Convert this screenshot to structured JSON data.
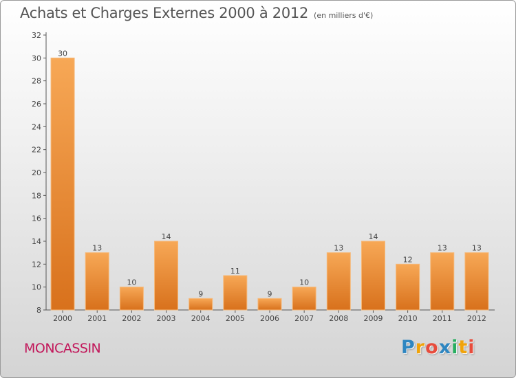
{
  "chart_data": {
    "type": "bar",
    "title": "Achats et Charges Externes 2000 à 2012",
    "unit_label": "(en milliers d'€)",
    "categories": [
      "2000",
      "2001",
      "2002",
      "2003",
      "2004",
      "2005",
      "2006",
      "2007",
      "2008",
      "2009",
      "2010",
      "2011",
      "2012"
    ],
    "values": [
      30,
      13,
      10,
      14,
      9,
      11,
      9,
      10,
      13,
      14,
      12,
      13,
      13
    ],
    "ylim": [
      8,
      32
    ],
    "yticks": [
      8,
      10,
      12,
      14,
      16,
      18,
      20,
      22,
      24,
      26,
      28,
      30,
      32
    ],
    "xlabel": "",
    "ylabel": "",
    "grid": false,
    "bar_color": "#f39a45",
    "bar_color_dark": "#d9731e"
  },
  "place_name": "MONCASSIN",
  "logo": {
    "letters": [
      "P",
      "r",
      "o",
      "x",
      "i",
      "t",
      "i"
    ],
    "colors": [
      "#2e86c1",
      "#f0a30a",
      "#e74c3c",
      "#2e86c1",
      "#27ae60",
      "#f0a30a",
      "#e74c3c"
    ]
  }
}
